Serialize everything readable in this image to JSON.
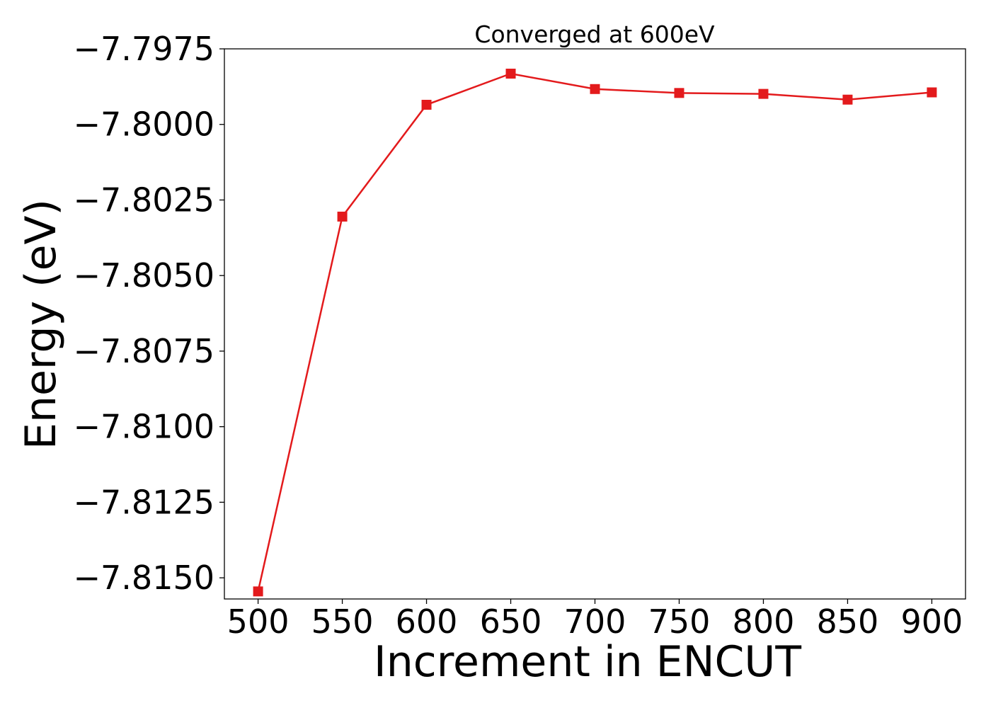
{
  "chart_data": {
    "type": "line",
    "title": "Converged at 600eV",
    "xlabel": "Increment in ENCUT",
    "ylabel": "Energy (eV)",
    "x": [
      500,
      550,
      600,
      650,
      700,
      750,
      800,
      850,
      900
    ],
    "xticks": [
      "500",
      "550",
      "600",
      "650",
      "700",
      "750",
      "800",
      "850",
      "900"
    ],
    "yticks": [
      -7.815,
      -7.8125,
      -7.81,
      -7.8075,
      -7.805,
      -7.8025,
      -7.8,
      -7.7975
    ],
    "ytick_labels": [
      "−7.8150",
      "−7.8125",
      "−7.8100",
      "−7.8075",
      "−7.8050",
      "−7.8025",
      "−7.8000",
      "−7.7975"
    ],
    "xlim": [
      480,
      920
    ],
    "ylim": [
      -7.8157,
      -7.7975
    ],
    "grid": false,
    "series": [
      {
        "color": "#e31a1c",
        "marker": "square",
        "values": [
          -7.81545,
          -7.80305,
          -7.79935,
          -7.79832,
          -7.79883,
          -7.79896,
          -7.79899,
          -7.79918,
          -7.79894
        ]
      }
    ]
  }
}
